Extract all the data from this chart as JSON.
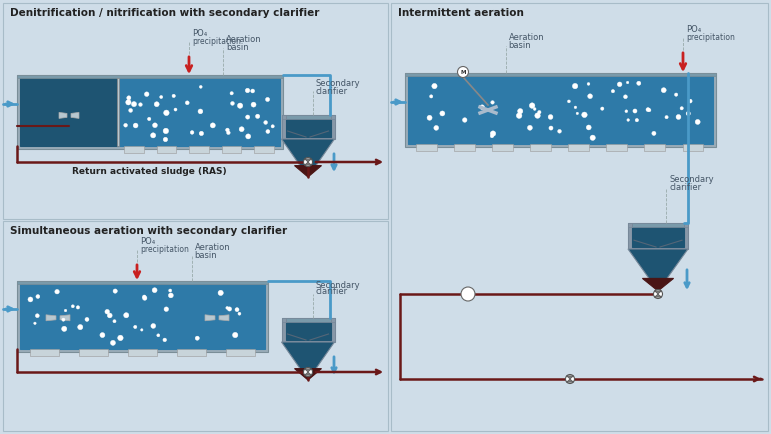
{
  "bg_color": "#cfdde8",
  "panel_border": "#a8bcc8",
  "title1": "Denitrification / nitrification with secondary clarifier",
  "title2": "Simultaneous aeration with secondary clarifier",
  "title3": "Intermittent aeration",
  "basin_dark": "#1e5472",
  "basin_mid": "#2e7aa8",
  "basin_light": "#4a9abf",
  "sludge_color": "#4a1515",
  "sludge_dark": "#3a1010",
  "gray_frame_outer": "#9aacb8",
  "gray_frame_inner": "#b8c8d0",
  "pipe_blue": "#4a9ac8",
  "pipe_dark_red": "#6a1818",
  "arrow_red": "#c82020",
  "white": "#ffffff",
  "diffuser_color": "#c8d4da",
  "text_dark": "#222222",
  "text_gray": "#445566",
  "launder_color": "#7a9aaa",
  "clarifier_wall": "#8898a8"
}
